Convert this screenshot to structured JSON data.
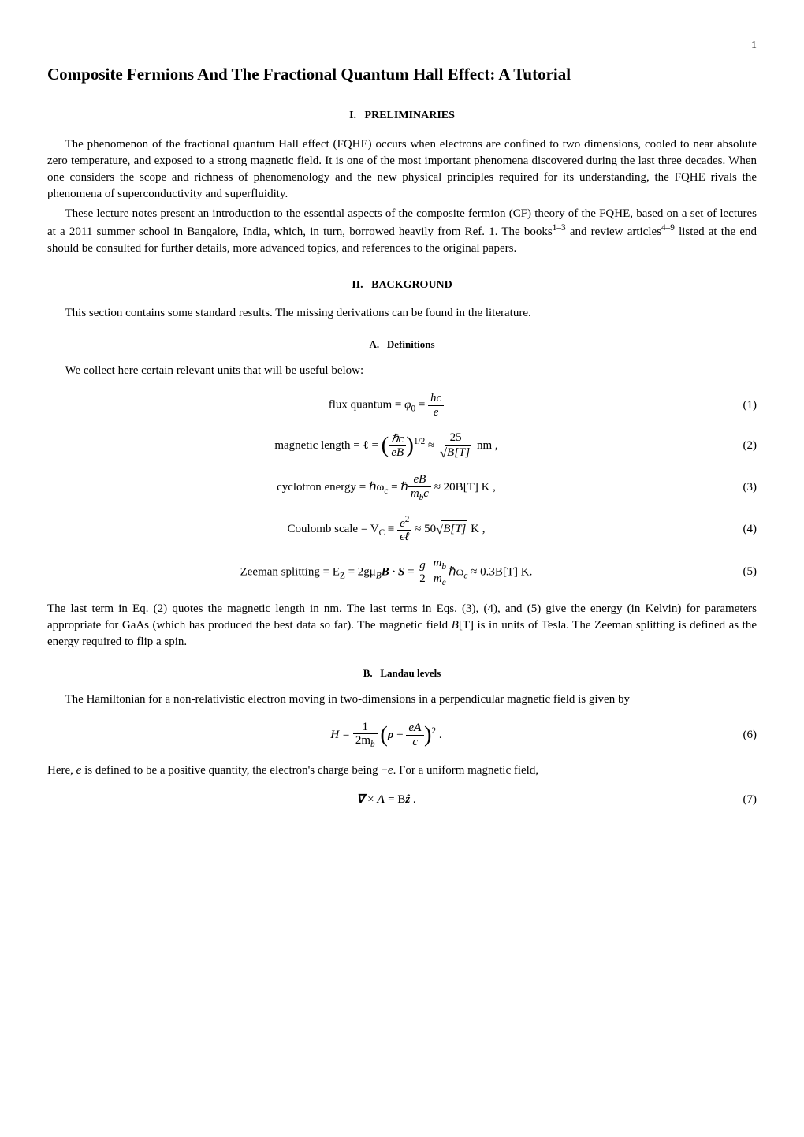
{
  "page_number": "1",
  "title": "Composite Fermions And The Fractional Quantum Hall Effect: A Tutorial",
  "sec1": {
    "num": "I.",
    "title": "PRELIMINARIES"
  },
  "p1": "The phenomenon of the fractional quantum Hall effect (FQHE) occurs when electrons are confined to two dimensions, cooled to near absolute zero temperature, and exposed to a strong magnetic field. It is one of the most important phenomena discovered during the last three decades. When one considers the scope and richness of phenomenology and the new physical principles required for its understanding, the FQHE rivals the phenomena of superconductivity and superfluidity.",
  "p2a": "These lecture notes present an introduction to the essential aspects of the composite fermion (CF) theory of the FQHE, based on a set of lectures at a 2011 summer school in Bangalore, India, which, in turn, borrowed heavily from Ref. 1. The books",
  "p2sup1": "1–3",
  "p2b": " and review articles",
  "p2sup2": "4–9",
  "p2c": " listed at the end should be consulted for further details, more advanced topics, and references to the original papers.",
  "sec2": {
    "num": "II.",
    "title": "BACKGROUND"
  },
  "p3": "This section contains some standard results. The missing derivations can be found in the literature.",
  "subA": {
    "num": "A.",
    "title": "Definitions"
  },
  "p4": "We collect here certain relevant units that will be useful below:",
  "eq1": {
    "lhs": "flux quantum = ",
    "phi": "φ",
    "zero": "0",
    "eq": " = ",
    "num": "hc",
    "den": "e",
    "n": "(1)"
  },
  "eq2": {
    "lhs": "magnetic length = ℓ = ",
    "num1": "ℏc",
    "den1": "eB",
    "exp": "1/2",
    "approx": " ≈ ",
    "num2": "25",
    "BT": "B[T]",
    "unit": " nm ,",
    "n": "(2)"
  },
  "eq3": {
    "lhs": "cyclotron energy = ℏω",
    "c": "c",
    "eq": " = ℏ",
    "num": "eB",
    "mb": "m",
    "b": "b",
    "cden": "c",
    "approx": " ≈ 20B[T] K ,",
    "n": "(3)"
  },
  "eq4": {
    "lhs": "Coulomb scale = V",
    "C": "C",
    "eq": " ≡ ",
    "num": "e",
    "two": "2",
    "den": "ϵℓ",
    "approx": " ≈ 50",
    "BT": "B[T]",
    "unit": " K ,",
    "n": "(4)"
  },
  "eq5": {
    "lhs": "Zeeman splitting = E",
    "Z": "Z",
    "eq1": " = 2gμ",
    "B": "B",
    "BS": "B · S",
    "eq2": " = ",
    "g": "g",
    "two": "2",
    "mb": "m",
    "b": "b",
    "me": "m",
    "e": "e",
    "hw": "ℏω",
    "c": "c",
    "approx": " ≈ 0.3B[T] K.",
    "n": "(5)"
  },
  "p5a": "The last term in Eq. (2) quotes the magnetic length in nm. The last terms in Eqs. (3), (4), and (5) give the energy (in Kelvin) for parameters appropriate for GaAs (which has produced the best data so far). The magnetic field ",
  "p5b": "B",
  "p5c": "[T] is in units of Tesla. The Zeeman splitting is defined as the energy required to flip a spin.",
  "subB": {
    "num": "B.",
    "title": "Landau levels"
  },
  "p6": "The Hamiltonian for a non-relativistic electron moving in two-dimensions in a perpendicular magnetic field is given by",
  "eq6": {
    "H": "H = ",
    "one": "1",
    "twomb": "2m",
    "b": "b",
    "p": "p",
    "plus": " + ",
    "eA_num": "eA",
    "c": "c",
    "exp": "2",
    "dot": " .",
    "n": "(6)"
  },
  "p7a": "Here, ",
  "p7b": "e",
  "p7c": " is defined to be a positive quantity, the electron's charge being −",
  "p7d": "e",
  "p7e": ". For a uniform magnetic field,",
  "eq7": {
    "nabla": "∇",
    "times": " × ",
    "A": "A",
    "eq": " = B",
    "z": "ẑ",
    "dot": " .",
    "n": "(7)"
  }
}
